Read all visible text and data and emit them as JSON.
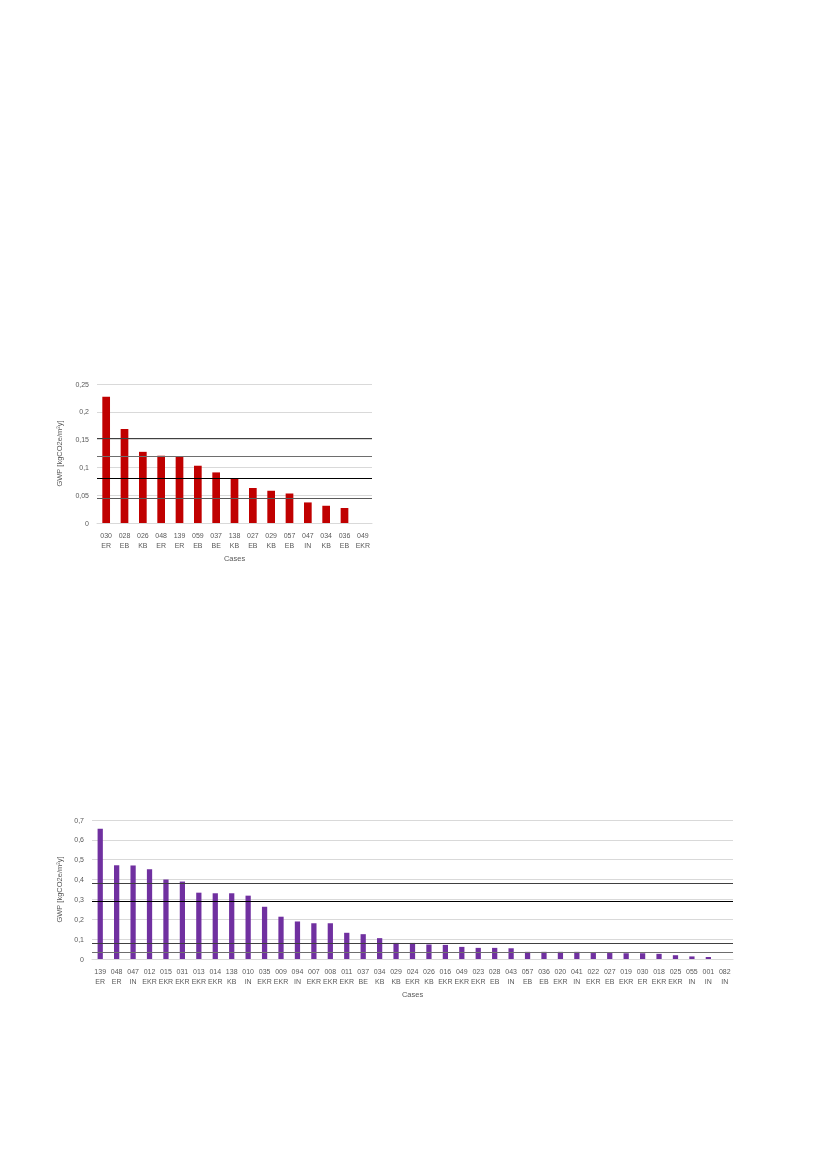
{
  "chart_data": [
    {
      "type": "bar",
      "ylabel": "GWP [kgCO2e/m²y]",
      "xlabel": "Cases",
      "categories": [
        "030\nER",
        "028\nEB",
        "026\nKB",
        "048\nER",
        "139\nER",
        "059\nEB",
        "037\nBE",
        "138\nKB",
        "027\nEB",
        "029\nKB",
        "057\nEB",
        "047\nIN",
        "034\nKB",
        "036\nEB",
        "049\nEKR"
      ],
      "values": [
        0.227,
        0.169,
        0.128,
        0.121,
        0.12,
        0.103,
        0.091,
        0.08,
        0.063,
        0.058,
        0.053,
        0.037,
        0.031,
        0.027,
        0
      ],
      "color": "#c00000",
      "ylim": [
        0,
        0.25
      ],
      "yticks": [
        0,
        {
          "value": 0.05,
          "label": "0,05"
        },
        {
          "value": 0.1,
          "label": "0,1"
        },
        {
          "value": 0.15,
          "label": "0,15"
        },
        {
          "value": 0.2,
          "label": "0,2"
        },
        {
          "value": 0.25,
          "label": "0,25"
        }
      ],
      "grid": "y",
      "ref_lines": [
        {
          "axis": "y",
          "value": 0.153,
          "color": "#404040"
        },
        {
          "axis": "y",
          "value": 0.12,
          "color": "#6e6e6e"
        },
        {
          "axis": "y",
          "value": 0.081,
          "color": "#000000"
        },
        {
          "axis": "y",
          "value": 0.044,
          "color": "#5a5a5a"
        }
      ]
    },
    {
      "type": "bar",
      "ylabel": "GWP [kgCO2e/m²y]",
      "xlabel": "Cases",
      "categories": [
        "139\nER",
        "048\nER",
        "047\nIN",
        "012\nEKR",
        "015\nEKR",
        "031\nEKR",
        "013\nEKR",
        "014\nEKR",
        "138\nKB",
        "010\nIN",
        "035\nEKR",
        "009\nEKR",
        "094\nIN",
        "007\nEKR",
        "008\nEKR",
        "011\nEKR",
        "037\nBE",
        "034\nKB",
        "029\nKB",
        "024\nEKR",
        "026\nKB",
        "016\nEKR",
        "049\nEKR",
        "023\nEKR",
        "028\nEB",
        "043\nIN",
        "057\nEB",
        "036\nEB",
        "020\nEKR",
        "041\nIN",
        "022\nEKR",
        "027\nEB",
        "019\nEKR",
        "030\nER",
        "018\nEKR",
        "025\nEKR",
        "055\nIN",
        "001\nIN",
        "082\nIN"
      ],
      "values": [
        0.656,
        0.472,
        0.471,
        0.452,
        0.4,
        0.39,
        0.334,
        0.331,
        0.331,
        0.319,
        0.263,
        0.213,
        0.189,
        0.18,
        0.18,
        0.132,
        0.125,
        0.105,
        0.081,
        0.081,
        0.073,
        0.071,
        0.061,
        0.056,
        0.056,
        0.054,
        0.036,
        0.036,
        0.036,
        0.036,
        0.03,
        0.03,
        0.029,
        0.029,
        0.026,
        0.019,
        0.013,
        0.01,
        0
      ],
      "color": "#7030a0",
      "ylim": [
        0,
        0.7
      ],
      "yticks": [
        0,
        {
          "value": 0.1,
          "label": "0,1"
        },
        {
          "value": 0.2,
          "label": "0,2"
        },
        {
          "value": 0.3,
          "label": "0,3"
        },
        {
          "value": 0.4,
          "label": "0,4"
        },
        {
          "value": 0.5,
          "label": "0,5"
        },
        {
          "value": 0.6,
          "label": "0,6"
        },
        {
          "value": 0.7,
          "label": "0,7"
        }
      ],
      "grid": "y",
      "ref_lines": [
        {
          "axis": "y",
          "value": 0.383,
          "color": "#404040"
        },
        {
          "axis": "y",
          "value": 0.293,
          "color": "#000000"
        },
        {
          "axis": "y",
          "value": 0.079,
          "color": "#404040"
        },
        {
          "axis": "y",
          "value": 0.035,
          "color": "#6e6e6e"
        }
      ]
    }
  ]
}
